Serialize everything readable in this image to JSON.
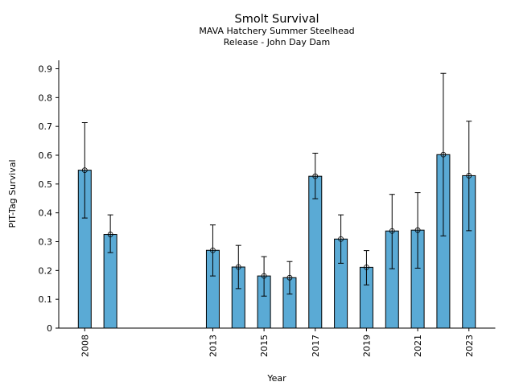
{
  "chart_data": {
    "type": "bar",
    "title": "Smolt Survival",
    "subtitle_lines": [
      "MAVA Hatchery Summer Steelhead",
      "Release - John Day Dam"
    ],
    "xlabel": "Year",
    "ylabel": "PIT-Tag Survival",
    "x": [
      2008,
      2009,
      2013,
      2014,
      2015,
      2016,
      2017,
      2018,
      2019,
      2020,
      2021,
      2022,
      2023
    ],
    "values": [
      0.548,
      0.325,
      0.27,
      0.212,
      0.181,
      0.175,
      0.527,
      0.309,
      0.211,
      0.337,
      0.34,
      0.602,
      0.529
    ],
    "error_low": [
      0.382,
      0.262,
      0.181,
      0.137,
      0.111,
      0.118,
      0.449,
      0.225,
      0.15,
      0.206,
      0.208,
      0.32,
      0.338
    ],
    "error_high": [
      0.713,
      0.393,
      0.358,
      0.287,
      0.248,
      0.231,
      0.607,
      0.393,
      0.269,
      0.464,
      0.47,
      0.884,
      0.718
    ],
    "xlim": [
      2007.0,
      2024.0
    ],
    "ylim": [
      0,
      0.93
    ],
    "xticks": [
      2008,
      2013,
      2015,
      2017,
      2019,
      2021,
      2023
    ],
    "xtick_labels": [
      "2008",
      "2013",
      "2015",
      "2017",
      "2019",
      "2021",
      "2023"
    ],
    "yticks": [
      0,
      0.1,
      0.2,
      0.3,
      0.4,
      0.5,
      0.6,
      0.7,
      0.8,
      0.9
    ],
    "ytick_labels": [
      "0",
      "0.1",
      "0.2",
      "0.3",
      "0.4",
      "0.5",
      "0.6",
      "0.7",
      "0.8",
      "0.9"
    ],
    "grid": false,
    "legend": "none",
    "bar_color": "#5aaad5",
    "edge_color": "#000000",
    "marker": "open-circle"
  }
}
